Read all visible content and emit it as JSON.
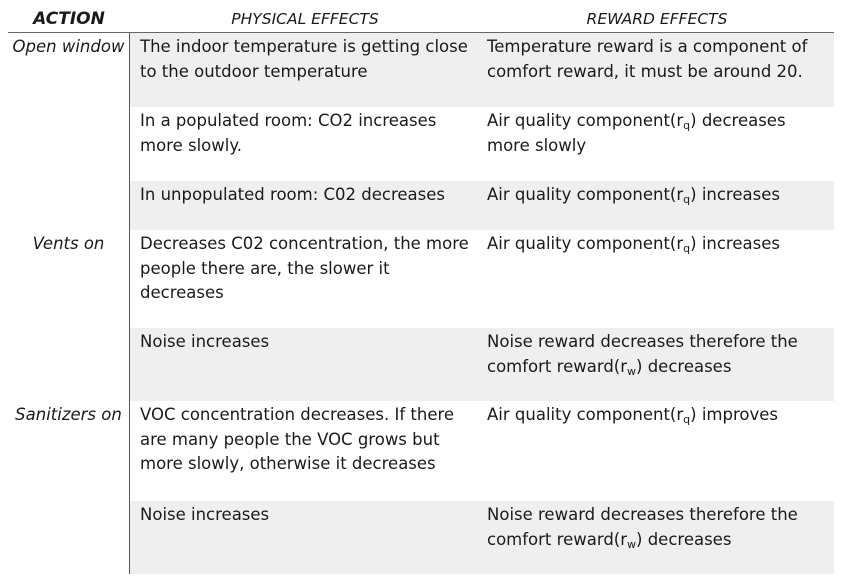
{
  "headers": {
    "action": "ACTION",
    "physical": "PHYSICAL EFFECTS",
    "reward": "REWARD EFFECTS"
  },
  "rows": [
    {
      "action": "Open window",
      "physical": "The indoor temperature is getting close to the outdoor temperature",
      "reward": "Temperature reward is a component of comfort reward, it must be around 20."
    },
    {
      "action": "",
      "physical": "In a populated room: CO2 increases more slowly.",
      "reward_pre": "Air quality component(r",
      "reward_sub": "q",
      "reward_post": ") decreases more slowly"
    },
    {
      "action": "",
      "physical": "In unpopulated room: C02 decreases",
      "reward_pre": "Air quality component(r",
      "reward_sub": "q",
      "reward_post": ") increases"
    },
    {
      "action": "Vents on",
      "physical": "Decreases C02 concentration, the more people there are, the slower it decreases",
      "reward_pre": "Air quality component(r",
      "reward_sub": "q",
      "reward_post": ") increases"
    },
    {
      "action": "",
      "physical": "Noise increases",
      "reward_pre": "Noise reward decreases therefore the comfort reward(r",
      "reward_sub": "w",
      "reward_post": ") decreases"
    },
    {
      "action": "Sanitizers on",
      "physical": "VOC concentration decreases. If there are many people the VOC grows but more slowly, otherwise it decreases",
      "reward_pre": "Air quality component(r",
      "reward_sub": "q",
      "reward_post": ") improves"
    },
    {
      "action": "",
      "physical": "Noise increases",
      "reward_pre": "Noise reward decreases therefore the comfort reward(r",
      "reward_sub": "w",
      "reward_post": ") decreases"
    }
  ]
}
